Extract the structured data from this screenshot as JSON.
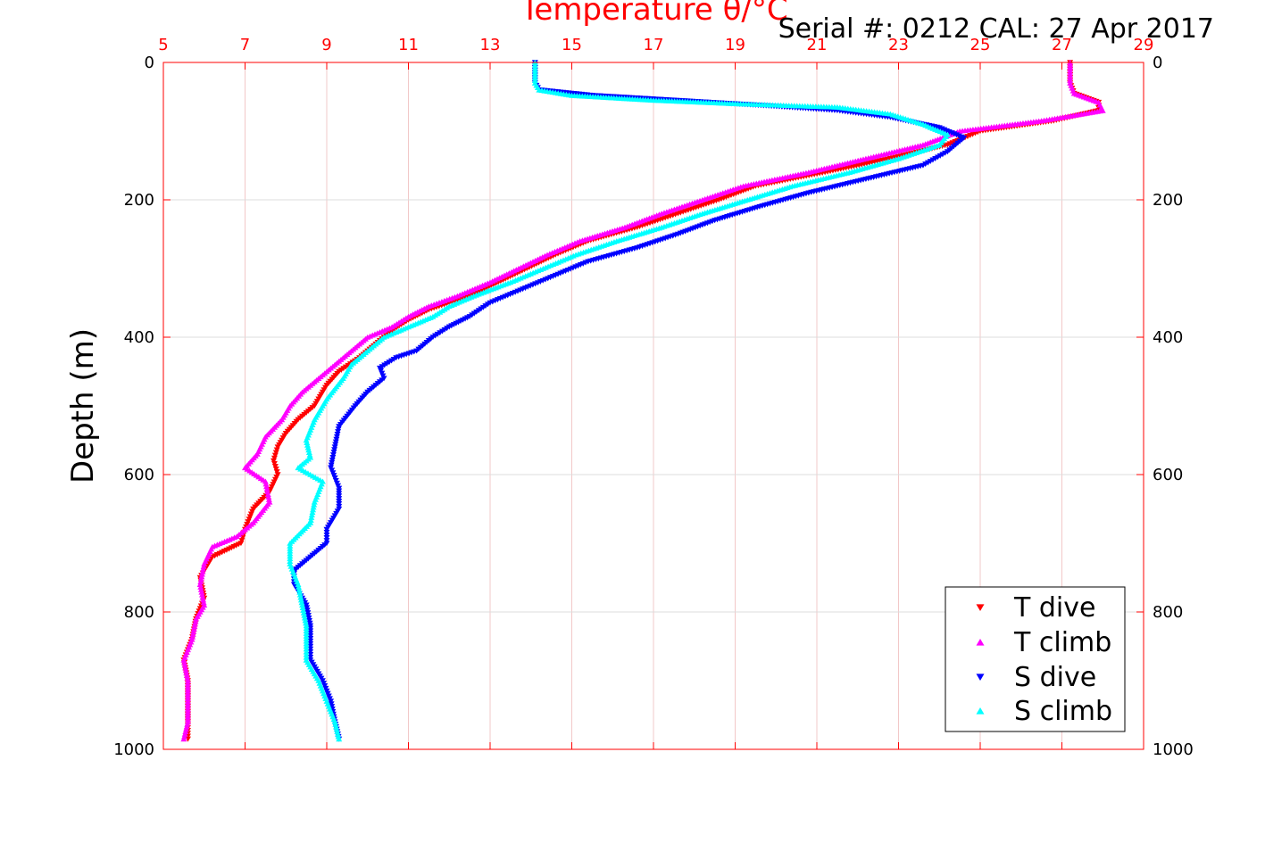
{
  "chart_data": {
    "type": "scatter",
    "title": "Temperature θ/°C",
    "subtitle": "Serial #: 0212  CAL: 27 Apr 2017",
    "xlabel": "Temperature θ/°C",
    "ylabel": "Depth (m)",
    "xlim": [
      5,
      29
    ],
    "ylim": [
      0,
      1000
    ],
    "y_reversed": true,
    "x_axis_position": "top",
    "x_ticks": [
      "5",
      "7",
      "9",
      "11",
      "13",
      "15",
      "17",
      "19",
      "21",
      "23",
      "25",
      "27",
      "29"
    ],
    "y_ticks": [
      "0",
      "200",
      "400",
      "600",
      "800",
      "1000"
    ],
    "grid": true,
    "legend_position": "bottom-right",
    "axis_color": "#ff0000",
    "series": [
      {
        "name": "T dive",
        "color": "#ff0000",
        "marker": "triangle-down",
        "x_of_depth": [
          [
            0,
            27.2
          ],
          [
            10,
            27.2
          ],
          [
            30,
            27.2
          ],
          [
            45,
            27.3
          ],
          [
            58,
            27.9
          ],
          [
            70,
            27.9
          ],
          [
            85,
            26.8
          ],
          [
            100,
            25.0
          ],
          [
            120,
            24.2
          ],
          [
            140,
            22.8
          ],
          [
            160,
            21.2
          ],
          [
            180,
            19.5
          ],
          [
            200,
            18.6
          ],
          [
            220,
            17.6
          ],
          [
            240,
            16.6
          ],
          [
            260,
            15.4
          ],
          [
            280,
            14.6
          ],
          [
            300,
            13.9
          ],
          [
            320,
            13.2
          ],
          [
            340,
            12.5
          ],
          [
            360,
            11.5
          ],
          [
            375,
            11.0
          ],
          [
            390,
            10.6
          ],
          [
            410,
            10.2
          ],
          [
            430,
            9.8
          ],
          [
            450,
            9.3
          ],
          [
            470,
            9.0
          ],
          [
            500,
            8.7
          ],
          [
            520,
            8.3
          ],
          [
            540,
            8.0
          ],
          [
            560,
            7.8
          ],
          [
            580,
            7.7
          ],
          [
            600,
            7.8
          ],
          [
            625,
            7.6
          ],
          [
            650,
            7.2
          ],
          [
            680,
            7.0
          ],
          [
            700,
            6.9
          ],
          [
            720,
            6.2
          ],
          [
            750,
            5.9
          ],
          [
            780,
            6.0
          ],
          [
            810,
            5.8
          ],
          [
            840,
            5.7
          ],
          [
            870,
            5.5
          ],
          [
            900,
            5.6
          ],
          [
            930,
            5.6
          ],
          [
            960,
            5.6
          ],
          [
            985,
            5.6
          ]
        ]
      },
      {
        "name": "T climb",
        "color": "#ff00ff",
        "marker": "triangle-up",
        "x_of_depth": [
          [
            0,
            27.2
          ],
          [
            10,
            27.2
          ],
          [
            30,
            27.2
          ],
          [
            45,
            27.3
          ],
          [
            58,
            27.9
          ],
          [
            70,
            28.0
          ],
          [
            85,
            26.5
          ],
          [
            100,
            24.5
          ],
          [
            120,
            23.6
          ],
          [
            140,
            22.2
          ],
          [
            160,
            20.8
          ],
          [
            180,
            19.2
          ],
          [
            200,
            18.2
          ],
          [
            220,
            17.2
          ],
          [
            240,
            16.3
          ],
          [
            260,
            15.2
          ],
          [
            280,
            14.4
          ],
          [
            300,
            13.7
          ],
          [
            320,
            13.0
          ],
          [
            340,
            12.2
          ],
          [
            355,
            11.5
          ],
          [
            370,
            11.0
          ],
          [
            385,
            10.6
          ],
          [
            400,
            10.0
          ],
          [
            420,
            9.6
          ],
          [
            440,
            9.2
          ],
          [
            460,
            8.8
          ],
          [
            480,
            8.4
          ],
          [
            500,
            8.1
          ],
          [
            520,
            7.9
          ],
          [
            545,
            7.5
          ],
          [
            570,
            7.3
          ],
          [
            590,
            7.0
          ],
          [
            610,
            7.5
          ],
          [
            640,
            7.6
          ],
          [
            670,
            7.2
          ],
          [
            690,
            6.8
          ],
          [
            705,
            6.2
          ],
          [
            730,
            6.0
          ],
          [
            760,
            5.9
          ],
          [
            790,
            6.0
          ],
          [
            810,
            5.8
          ],
          [
            840,
            5.7
          ],
          [
            870,
            5.5
          ],
          [
            900,
            5.6
          ],
          [
            930,
            5.6
          ],
          [
            960,
            5.6
          ],
          [
            985,
            5.5
          ]
        ]
      },
      {
        "name": "S dive",
        "color": "#0000ff",
        "marker": "triangle-down",
        "x_of_depth": [
          [
            0,
            14.1
          ],
          [
            15,
            14.1
          ],
          [
            30,
            14.1
          ],
          [
            40,
            14.2
          ],
          [
            48,
            15.5
          ],
          [
            55,
            17.5
          ],
          [
            62,
            19.5
          ],
          [
            70,
            21.5
          ],
          [
            80,
            22.8
          ],
          [
            95,
            24.0
          ],
          [
            110,
            24.6
          ],
          [
            130,
            24.2
          ],
          [
            150,
            23.6
          ],
          [
            170,
            22.2
          ],
          [
            190,
            20.8
          ],
          [
            210,
            19.6
          ],
          [
            230,
            18.5
          ],
          [
            250,
            17.6
          ],
          [
            270,
            16.6
          ],
          [
            290,
            15.4
          ],
          [
            310,
            14.6
          ],
          [
            330,
            13.8
          ],
          [
            350,
            13.0
          ],
          [
            370,
            12.5
          ],
          [
            385,
            12.0
          ],
          [
            400,
            11.6
          ],
          [
            420,
            11.2
          ],
          [
            430,
            10.7
          ],
          [
            445,
            10.3
          ],
          [
            460,
            10.4
          ],
          [
            480,
            10.0
          ],
          [
            500,
            9.7
          ],
          [
            530,
            9.3
          ],
          [
            560,
            9.2
          ],
          [
            590,
            9.1
          ],
          [
            620,
            9.3
          ],
          [
            650,
            9.3
          ],
          [
            680,
            9.0
          ],
          [
            700,
            9.0
          ],
          [
            720,
            8.6
          ],
          [
            740,
            8.2
          ],
          [
            760,
            8.2
          ],
          [
            790,
            8.5
          ],
          [
            820,
            8.6
          ],
          [
            850,
            8.6
          ],
          [
            870,
            8.6
          ],
          [
            900,
            8.9
          ],
          [
            930,
            9.1
          ],
          [
            960,
            9.2
          ],
          [
            985,
            9.3
          ]
        ]
      },
      {
        "name": "S climb",
        "color": "#00ffff",
        "marker": "triangle-up",
        "x_of_depth": [
          [
            0,
            14.1
          ],
          [
            15,
            14.1
          ],
          [
            30,
            14.1
          ],
          [
            40,
            14.2
          ],
          [
            48,
            15.0
          ],
          [
            55,
            17.0
          ],
          [
            60,
            19.0
          ],
          [
            65,
            21.5
          ],
          [
            75,
            22.8
          ],
          [
            90,
            23.6
          ],
          [
            105,
            24.2
          ],
          [
            120,
            24.0
          ],
          [
            140,
            23.0
          ],
          [
            160,
            21.8
          ],
          [
            180,
            20.4
          ],
          [
            200,
            19.3
          ],
          [
            220,
            18.2
          ],
          [
            240,
            17.2
          ],
          [
            260,
            16.1
          ],
          [
            280,
            15.1
          ],
          [
            300,
            14.3
          ],
          [
            320,
            13.5
          ],
          [
            340,
            12.6
          ],
          [
            355,
            12.0
          ],
          [
            370,
            11.6
          ],
          [
            385,
            11.0
          ],
          [
            400,
            10.4
          ],
          [
            420,
            10.0
          ],
          [
            440,
            9.6
          ],
          [
            460,
            9.4
          ],
          [
            490,
            9.0
          ],
          [
            520,
            8.7
          ],
          [
            550,
            8.5
          ],
          [
            575,
            8.6
          ],
          [
            590,
            8.3
          ],
          [
            610,
            8.9
          ],
          [
            640,
            8.7
          ],
          [
            670,
            8.6
          ],
          [
            700,
            8.1
          ],
          [
            730,
            8.1
          ],
          [
            760,
            8.3
          ],
          [
            790,
            8.4
          ],
          [
            820,
            8.5
          ],
          [
            850,
            8.5
          ],
          [
            870,
            8.5
          ],
          [
            900,
            8.8
          ],
          [
            930,
            9.0
          ],
          [
            960,
            9.2
          ],
          [
            985,
            9.3
          ]
        ]
      }
    ]
  }
}
